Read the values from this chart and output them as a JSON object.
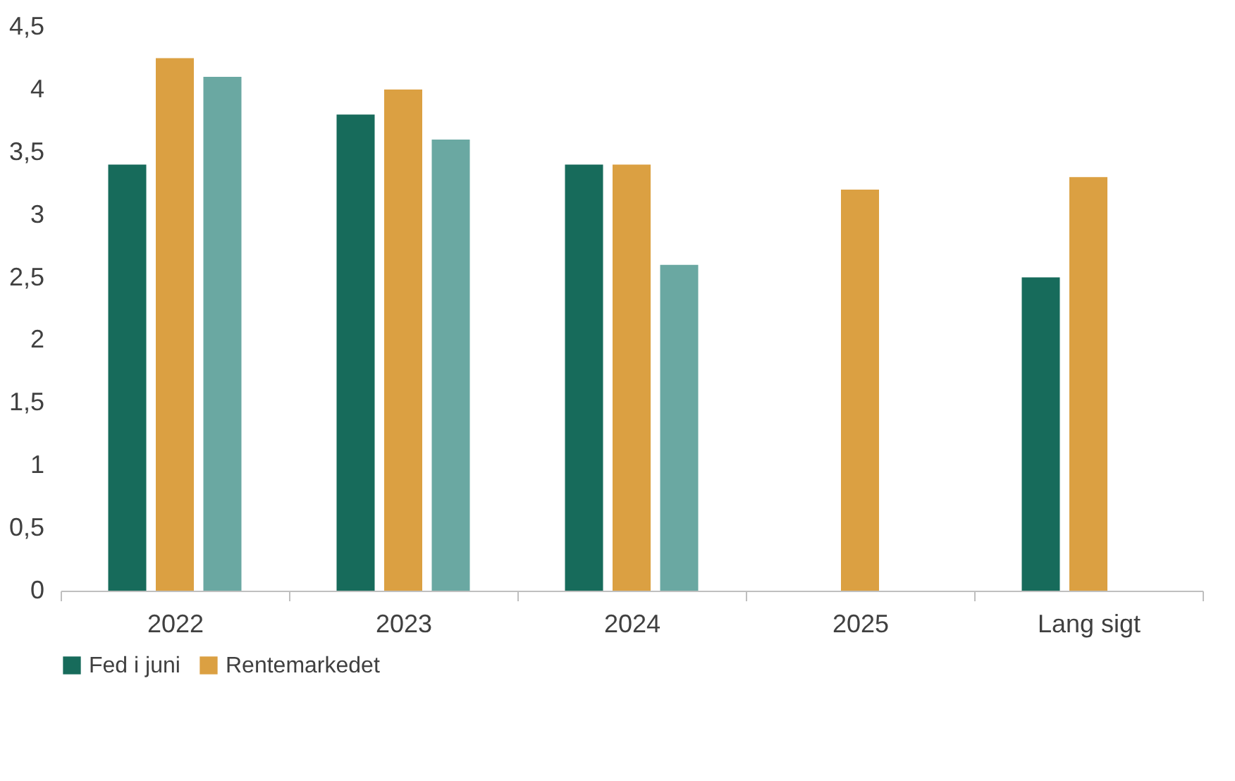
{
  "chart_data": {
    "type": "bar",
    "categories": [
      "2022",
      "2023",
      "2024",
      "2025",
      "Lang sigt"
    ],
    "series": [
      {
        "name": "Fed i juni",
        "color": "#176b5b",
        "values": [
          3.4,
          3.8,
          3.4,
          null,
          2.5
        ]
      },
      {
        "name": "Rentemarkedet",
        "color": "#dba042",
        "values": [
          4.25,
          4.0,
          3.4,
          3.2,
          3.3
        ]
      },
      {
        "color": "#6aa8a2",
        "values": [
          4.1,
          3.6,
          2.6,
          null,
          null
        ]
      }
    ],
    "ylim": [
      0,
      4.5
    ],
    "yticks": [
      0,
      {
        "value": 0.5,
        "label": "0,5"
      },
      1,
      {
        "value": 1.5,
        "label": "1,5"
      },
      2,
      {
        "value": 2.5,
        "label": "2,5"
      },
      3,
      {
        "value": 3.5,
        "label": "3,5"
      },
      4,
      {
        "value": 4.5,
        "label": "4,5"
      }
    ],
    "grid": false,
    "legend": "bottom"
  }
}
